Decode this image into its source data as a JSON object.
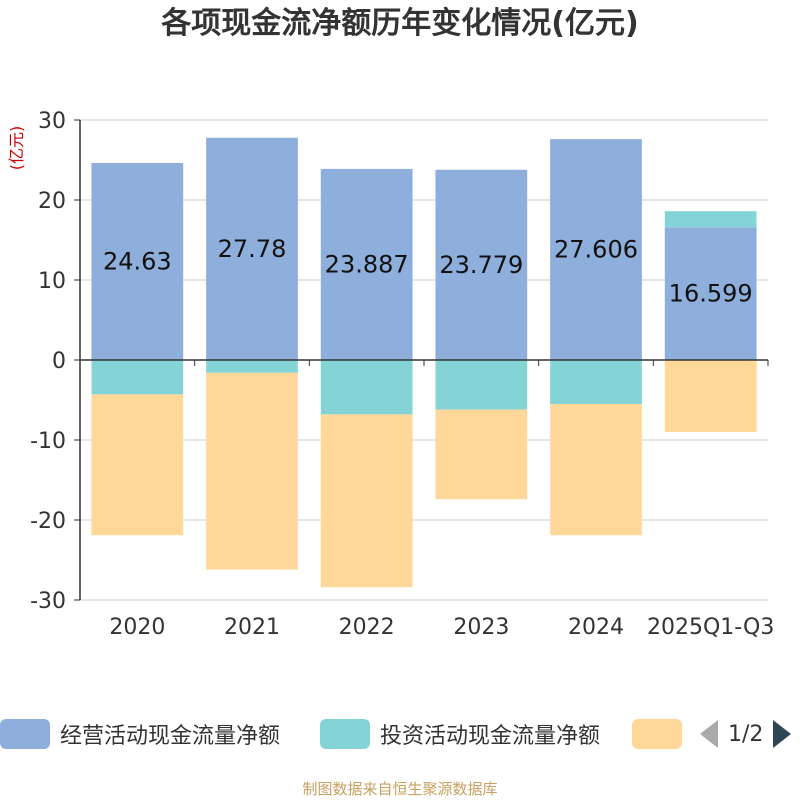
{
  "chart_data": {
    "type": "bar",
    "stacked": true,
    "title": "各项现金流净额历年变化情况(亿元)",
    "ylabel": "(亿元)",
    "ylim": [
      -30,
      30
    ],
    "yticks": [
      30,
      20,
      10,
      0,
      -10,
      -20,
      -30
    ],
    "categories": [
      "2020",
      "2021",
      "2022",
      "2023",
      "2024",
      "2025Q1-Q3"
    ],
    "series": [
      {
        "name": "经营活动现金流量净额",
        "color": "#8eaedb",
        "values": [
          24.63,
          27.78,
          23.887,
          23.779,
          27.606,
          16.599
        ],
        "labels": [
          "24.63",
          "27.78",
          "23.887",
          "23.779",
          "27.606",
          "16.599"
        ]
      },
      {
        "name": "投资活动现金流量净额",
        "color": "#84d4d7",
        "values": [
          -4.3,
          -1.6,
          -6.8,
          -6.2,
          -5.5,
          2.0
        ]
      },
      {
        "name": "",
        "color": "#ffd899",
        "values": [
          -17.6,
          -24.6,
          -21.6,
          -11.2,
          -16.4,
          -9.0
        ]
      }
    ],
    "legend_position": "bottom"
  },
  "legend": {
    "page": "1/2"
  },
  "source": "制图数据来自恒生聚源数据库"
}
